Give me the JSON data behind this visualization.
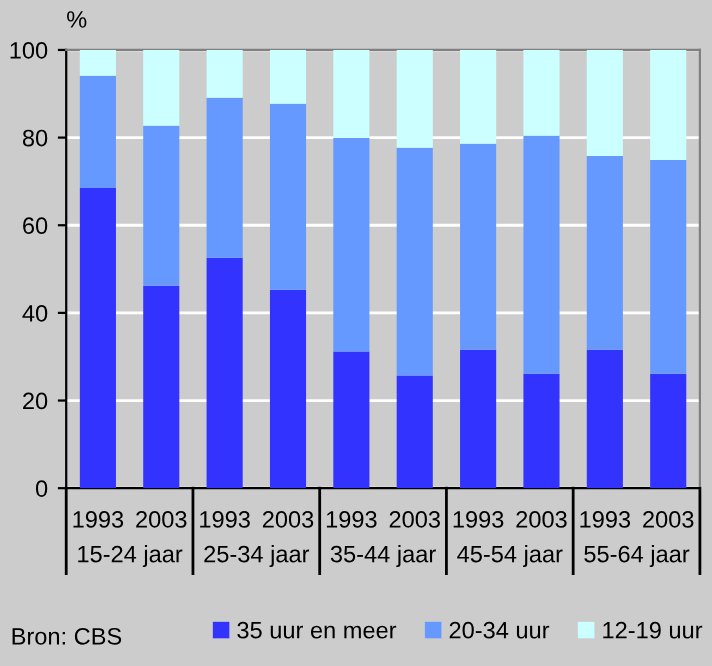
{
  "chart_data": {
    "type": "bar",
    "stacked": true,
    "ylabel": "%",
    "categories": [
      "1993",
      "2003",
      "1993",
      "2003",
      "1993",
      "2003",
      "1993",
      "2003",
      "1993",
      "2003"
    ],
    "series": [
      {
        "name": "35 uur en meer",
        "color": "#3333ff",
        "values": [
          68.5,
          46.2,
          52.6,
          45.3,
          31.2,
          25.7,
          31.6,
          26.1,
          31.6,
          26.1
        ]
      },
      {
        "name": "20-34 uur",
        "color": "#6699ff",
        "values": [
          25.6,
          36.5,
          36.5,
          42.4,
          48.7,
          52.0,
          47.0,
          54.3,
          44.2,
          48.8
        ]
      },
      {
        "name": "12-19 uur",
        "color": "#ccffff",
        "values": [
          5.9,
          17.3,
          10.9,
          12.3,
          20.1,
          22.3,
          21.4,
          19.6,
          24.2,
          25.1
        ]
      }
    ],
    "ylim": [
      0,
      100
    ],
    "yticks": [
      0,
      20,
      40,
      60,
      80,
      100
    ],
    "grid": "y",
    "legend": "bottom",
    "annotations": [
      "15-24 jaar",
      "25-34 jaar",
      "35-44 jaar",
      "45-54 jaar",
      "55-64 jaar",
      "Bron: CBS"
    ]
  }
}
